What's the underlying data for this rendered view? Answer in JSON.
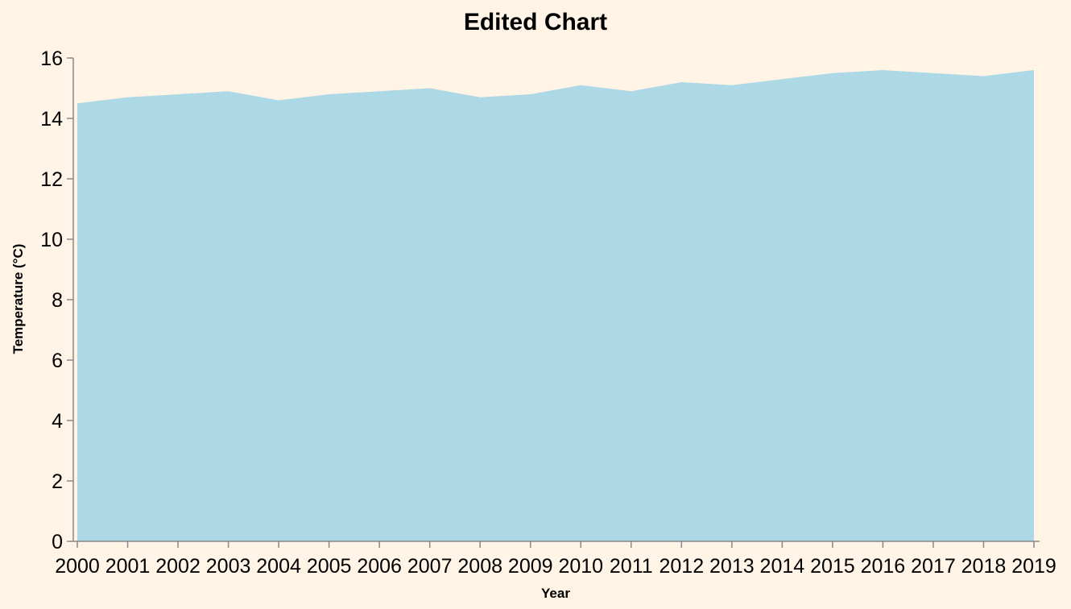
{
  "chart_data": {
    "type": "area",
    "title": "Edited Chart",
    "xlabel": "Year",
    "ylabel": "Temperature (°C)",
    "x": [
      2000,
      2001,
      2002,
      2003,
      2004,
      2005,
      2006,
      2007,
      2008,
      2009,
      2010,
      2011,
      2012,
      2013,
      2014,
      2015,
      2016,
      2017,
      2018,
      2019
    ],
    "x_tick_labels": [
      "2000",
      "2001",
      "2002",
      "2003",
      "2004",
      "2005",
      "2006",
      "2007",
      "2008",
      "2009",
      "2010",
      "2011",
      "2012",
      "2013",
      "2014",
      "2015",
      "2016",
      "2017",
      "2018",
      "2019"
    ],
    "values": [
      14.5,
      14.7,
      14.8,
      14.9,
      14.6,
      14.8,
      14.9,
      15.0,
      14.7,
      14.8,
      15.1,
      14.9,
      15.2,
      15.1,
      15.3,
      15.5,
      15.6,
      15.5,
      15.4,
      15.6
    ],
    "ylim": [
      0,
      16
    ],
    "y_ticks": [
      0,
      2,
      4,
      6,
      8,
      10,
      12,
      14,
      16
    ],
    "y_tick_labels": [
      "0",
      "2",
      "4",
      "6",
      "8",
      "10",
      "12",
      "14",
      "16"
    ],
    "grid": false,
    "colors": {
      "area_fill": "#add8e6",
      "background": "#fff4e6",
      "axis": "#888888"
    }
  }
}
